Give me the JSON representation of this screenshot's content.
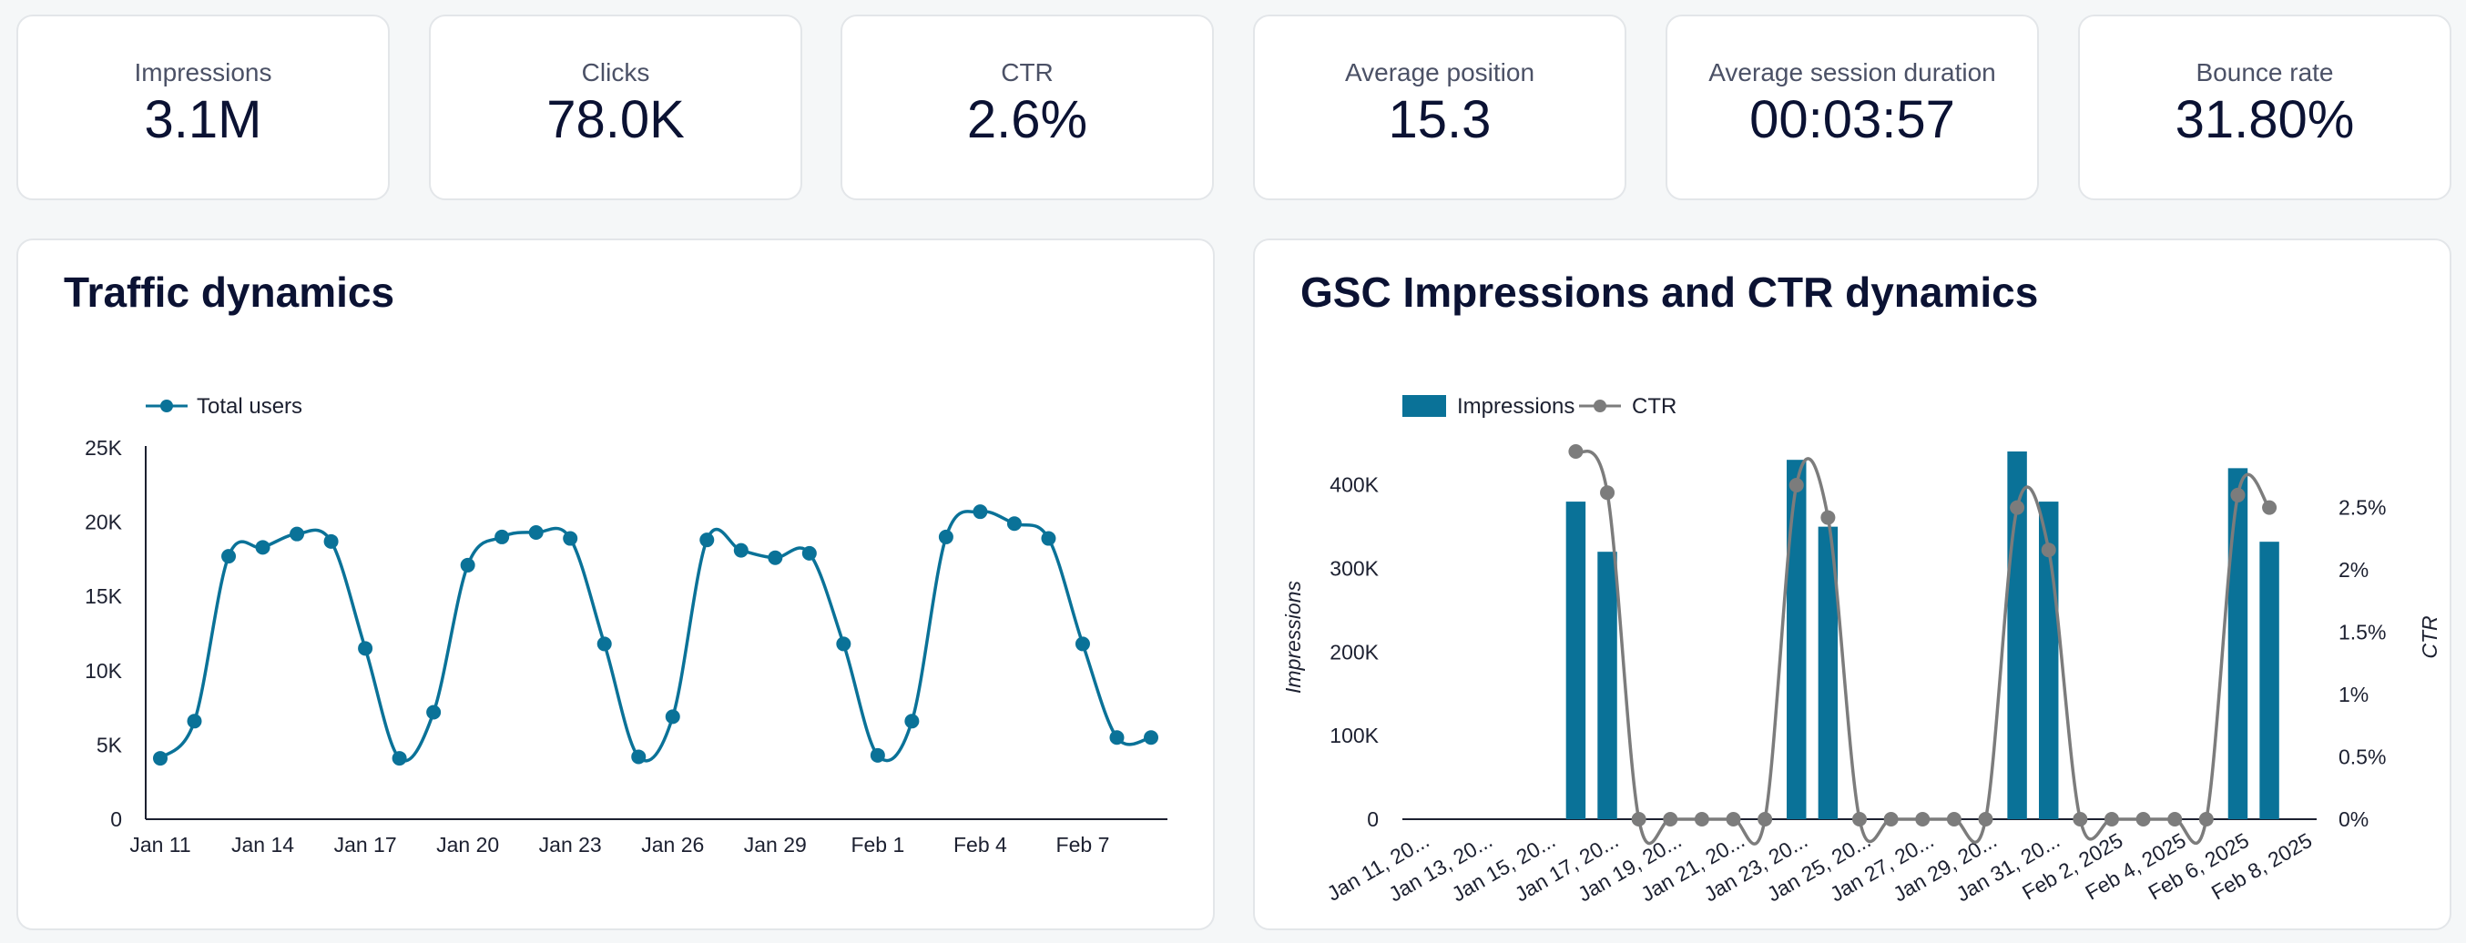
{
  "kpis": [
    {
      "label": "Impressions",
      "value": "3.1M"
    },
    {
      "label": "Clicks",
      "value": "78.0K"
    },
    {
      "label": "CTR",
      "value": "2.6%"
    },
    {
      "label": "Average position",
      "value": "15.3"
    },
    {
      "label": "Average session duration",
      "value": "00:03:57"
    },
    {
      "label": "Bounce rate",
      "value": "31.80%"
    }
  ],
  "colors": {
    "primary": "#0a7298",
    "secondary": "#7c7c7c",
    "axis": "#1c2030"
  },
  "chart_data": [
    {
      "type": "line",
      "title": "Traffic dynamics",
      "legend": [
        "Total users"
      ],
      "x": [
        "Jan 11",
        "Jan 12",
        "Jan 13",
        "Jan 14",
        "Jan 15",
        "Jan 16",
        "Jan 17",
        "Jan 18",
        "Jan 19",
        "Jan 20",
        "Jan 21",
        "Jan 22",
        "Jan 23",
        "Jan 24",
        "Jan 25",
        "Jan 26",
        "Jan 27",
        "Jan 28",
        "Jan 29",
        "Jan 30",
        "Jan 31",
        "Feb 1",
        "Feb 2",
        "Feb 3",
        "Feb 4",
        "Feb 5",
        "Feb 6",
        "Feb 7",
        "Feb 8",
        "Feb 9"
      ],
      "x_tick_labels": [
        "Jan 11",
        "Jan 14",
        "Jan 17",
        "Jan 20",
        "Jan 23",
        "Jan 26",
        "Jan 29",
        "Feb 1",
        "Feb 4",
        "Feb 7"
      ],
      "x_tick_indices": [
        0,
        3,
        6,
        9,
        12,
        15,
        18,
        21,
        24,
        27
      ],
      "series": [
        {
          "name": "Total users",
          "values": [
            4100,
            6600,
            17700,
            18300,
            19200,
            18700,
            11500,
            4100,
            7200,
            17100,
            19000,
            19300,
            18900,
            11800,
            4200,
            6900,
            18800,
            18100,
            17600,
            17900,
            11800,
            4300,
            6600,
            19000,
            20700,
            19900,
            18900,
            11800,
            5500,
            5500
          ]
        }
      ],
      "ylim": [
        0,
        25000
      ],
      "y_ticks": [
        0,
        5000,
        10000,
        15000,
        20000,
        25000
      ],
      "y_tick_labels": [
        "0",
        "5K",
        "10K",
        "15K",
        "20K",
        "25K"
      ]
    },
    {
      "type": "bar",
      "title": "GSC Impressions and CTR dynamics",
      "legend": [
        "Impressions",
        "CTR"
      ],
      "categories": [
        "Jan 11, 2025",
        "Jan 12, 2025",
        "Jan 13, 2025",
        "Jan 14, 2025",
        "Jan 15, 2025",
        "Jan 16, 2025",
        "Jan 17, 2025",
        "Jan 18, 2025",
        "Jan 19, 2025",
        "Jan 20, 2025",
        "Jan 21, 2025",
        "Jan 22, 2025",
        "Jan 23, 2025",
        "Jan 24, 2025",
        "Jan 25, 2025",
        "Jan 26, 2025",
        "Jan 27, 2025",
        "Jan 28, 2025",
        "Jan 29, 2025",
        "Jan 30, 2025",
        "Jan 31, 2025",
        "Feb 1, 2025",
        "Feb 2, 2025",
        "Feb 3, 2025",
        "Feb 4, 2025",
        "Feb 5, 2025",
        "Feb 6, 2025",
        "Feb 7, 2025",
        "Feb 8, 2025"
      ],
      "x_tick_labels": [
        "Jan 11, 20...",
        "Jan 13, 20...",
        "Jan 15, 20...",
        "Jan 17, 20...",
        "Jan 19, 20...",
        "Jan 21, 20...",
        "Jan 23, 20...",
        "Jan 25, 20...",
        "Jan 27, 20...",
        "Jan 29, 20...",
        "Jan 31, 20...",
        "Feb 2, 2025",
        "Feb 4, 2025",
        "Feb 6, 2025",
        "Feb 8, 2025"
      ],
      "x_tick_indices": [
        0,
        2,
        4,
        6,
        8,
        10,
        12,
        14,
        16,
        18,
        20,
        22,
        24,
        26,
        28
      ],
      "series": [
        {
          "name": "Impressions",
          "axis": "left",
          "values": [
            null,
            null,
            null,
            null,
            null,
            380000,
            320000,
            null,
            null,
            null,
            null,
            null,
            430000,
            350000,
            null,
            null,
            null,
            null,
            null,
            440000,
            380000,
            null,
            null,
            null,
            null,
            null,
            420000,
            332000,
            null
          ]
        },
        {
          "name": "CTR",
          "axis": "right",
          "values": [
            null,
            null,
            null,
            null,
            null,
            2.95,
            2.62,
            0,
            0,
            0,
            0,
            0,
            2.68,
            2.42,
            0,
            0,
            0,
            0,
            0,
            2.5,
            2.16,
            0,
            0,
            0,
            0,
            0,
            2.6,
            2.5,
            null
          ]
        }
      ],
      "ylabel": "Impressions",
      "ylabel_right": "CTR",
      "ylim": [
        0,
        440000
      ],
      "y_ticks": [
        0,
        100000,
        200000,
        300000,
        400000
      ],
      "y_tick_labels": [
        "0",
        "100K",
        "200K",
        "300K",
        "400K"
      ],
      "ylim_right": [
        0,
        2.95
      ],
      "y_ticks_right": [
        0,
        0.5,
        1,
        1.5,
        2,
        2.5
      ],
      "y_tick_labels_right": [
        "0%",
        "0.5%",
        "1%",
        "1.5%",
        "2%",
        "2.5%"
      ]
    }
  ]
}
